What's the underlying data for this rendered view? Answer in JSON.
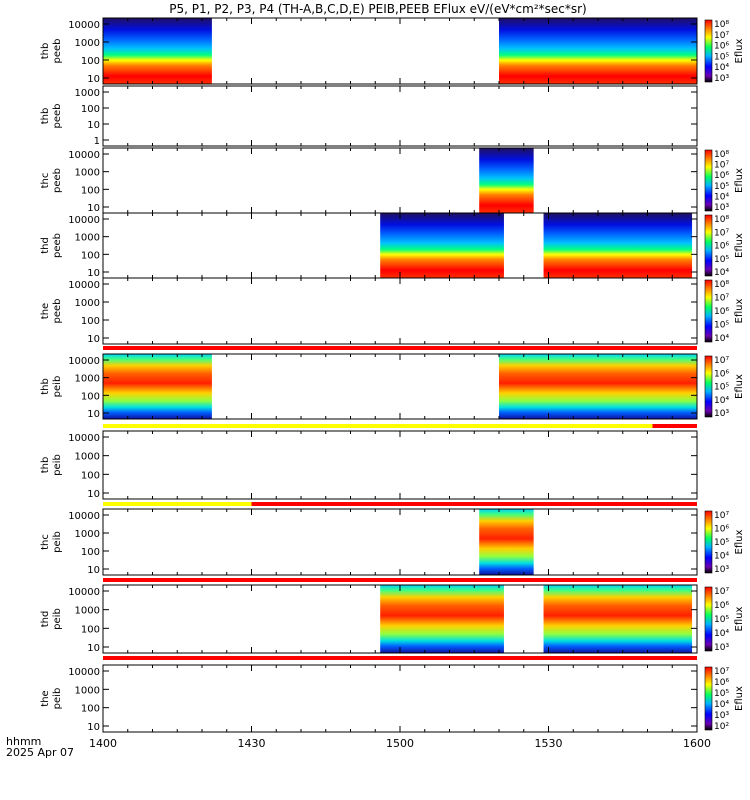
{
  "chart_data": {
    "type": "heatmap",
    "title": "P5, P1, P2, P3, P4 (TH-A,B,C,D,E) PEIB,PEEB EFlux eV/(eV*cm²*sec*sr)",
    "time_axis": {
      "label_top": "hhmm",
      "label_bottom": "2025 Apr 07",
      "range": [
        "1400",
        "1600"
      ],
      "ticks": [
        "1400",
        "1430",
        "1500",
        "1530",
        "1600"
      ]
    },
    "colorbar_label": "Eflux",
    "panels": [
      {
        "name": "thb peeb",
        "label1": "thb",
        "label2": "peeb",
        "yticks": [
          "10",
          "100",
          "1000",
          "10000"
        ],
        "coverage": [
          [
            "1400",
            "1422"
          ],
          [
            "1520",
            "1600"
          ]
        ],
        "colorbar_ticks": [
          "10³",
          "10⁴",
          "10⁵",
          "10⁶",
          "10⁷",
          "10⁸"
        ]
      },
      {
        "name": "thb peeb",
        "label1": "thb",
        "label2": "peeb",
        "yticks": [
          "1",
          "10",
          "100",
          "1000"
        ],
        "coverage": []
      },
      {
        "name": "thc peeb",
        "label1": "thc",
        "label2": "peeb",
        "yticks": [
          "10",
          "100",
          "1000",
          "10000"
        ],
        "coverage": [
          [
            "1516",
            "1527"
          ]
        ],
        "colorbar_ticks": [
          "10³",
          "10⁴",
          "10⁵",
          "10⁶",
          "10⁷",
          "10⁸"
        ]
      },
      {
        "name": "thd peeb",
        "label1": "thd",
        "label2": "peeb",
        "yticks": [
          "10",
          "100",
          "1000",
          "10000"
        ],
        "coverage": [
          [
            "1456",
            "1521"
          ],
          [
            "1529",
            "1559"
          ]
        ],
        "colorbar_ticks": [
          "10⁴",
          "10⁵",
          "10⁶",
          "10⁷",
          "10⁸"
        ]
      },
      {
        "name": "the peeb",
        "label1": "the",
        "label2": "peeb",
        "yticks": [
          "10",
          "100",
          "1000",
          "10000"
        ],
        "coverage": [],
        "colorbar_ticks": [
          "10⁴",
          "10⁵",
          "10⁶",
          "10⁷",
          "10⁸"
        ]
      },
      {
        "name": "thb peib",
        "label1": "thb",
        "label2": "peib",
        "yticks": [
          "10",
          "100",
          "1000",
          "10000"
        ],
        "coverage": [
          [
            "1400",
            "1422"
          ],
          [
            "1520",
            "1600"
          ]
        ],
        "colorbar_ticks": [
          "10³",
          "10⁴",
          "10⁵",
          "10⁶",
          "10⁷"
        ]
      },
      {
        "name": "thb peib",
        "label1": "thb",
        "label2": "peib",
        "yticks": [
          "10",
          "100",
          "1000",
          "10000"
        ],
        "coverage": []
      },
      {
        "name": "thc peib",
        "label1": "thc",
        "label2": "peib",
        "yticks": [
          "10",
          "100",
          "1000",
          "10000"
        ],
        "coverage": [
          [
            "1516",
            "1527"
          ]
        ],
        "colorbar_ticks": [
          "10³",
          "10⁴",
          "10⁵",
          "10⁶",
          "10⁷"
        ]
      },
      {
        "name": "thd peib",
        "label1": "thd",
        "label2": "peib",
        "yticks": [
          "10",
          "100",
          "1000",
          "10000"
        ],
        "coverage": [
          [
            "1456",
            "1521"
          ],
          [
            "1529",
            "1559"
          ]
        ],
        "colorbar_ticks": [
          "10³",
          "10⁴",
          "10⁵",
          "10⁶",
          "10⁷"
        ]
      },
      {
        "name": "the peib",
        "label1": "the",
        "label2": "peib",
        "yticks": [
          "10",
          "100",
          "1000",
          "10000"
        ],
        "coverage": [],
        "colorbar_ticks": [
          "10²",
          "10³",
          "10⁴",
          "10⁵",
          "10⁶",
          "10⁷"
        ]
      }
    ],
    "status_bars": [
      {
        "segments": [
          {
            "from": "1400",
            "to": "1600",
            "color": "#ff0000"
          }
        ]
      },
      {
        "segments": [
          {
            "from": "1400",
            "to": "1551",
            "color": "#ffff00"
          },
          {
            "from": "1551",
            "to": "1600",
            "color": "#ff0000"
          }
        ]
      },
      {
        "segments": [
          {
            "from": "1400",
            "to": "1430",
            "color": "#ffff00"
          },
          {
            "from": "1430",
            "to": "1600",
            "color": "#ff0000"
          }
        ]
      },
      {
        "segments": [
          {
            "from": "1400",
            "to": "1600",
            "color": "#ff0000"
          }
        ]
      },
      {
        "segments": [
          {
            "from": "1400",
            "to": "1600",
            "color": "#ff0000"
          }
        ]
      }
    ]
  }
}
